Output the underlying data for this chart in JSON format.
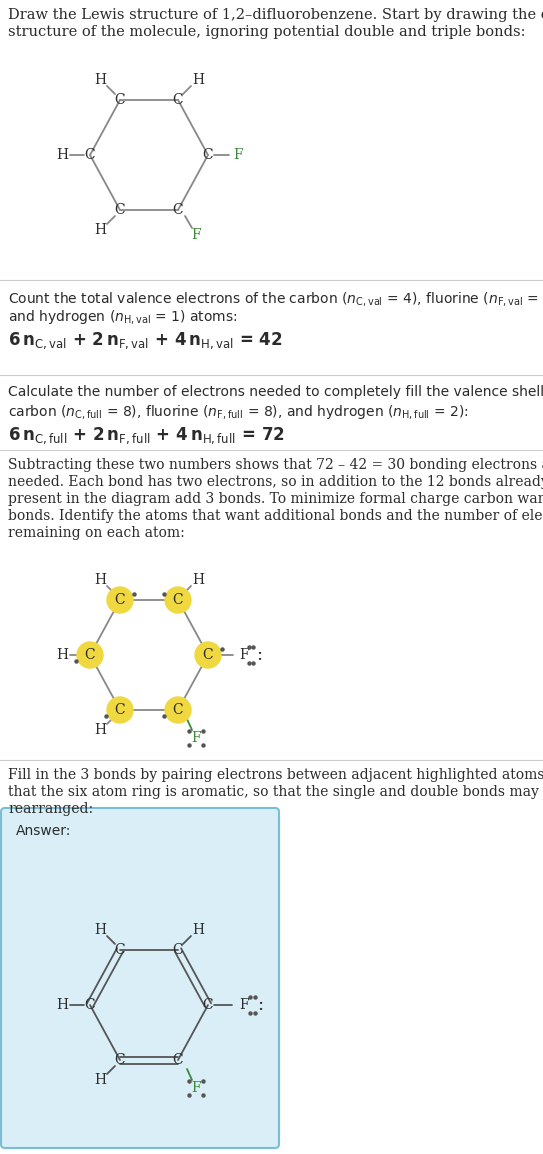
{
  "bg_color": "#ffffff",
  "text_color": "#2b2b2b",
  "gray_color": "#888888",
  "green_color": "#3a8a3a",
  "highlight_color": "#f0d840",
  "answer_box_color": "#daeef8",
  "answer_box_border": "#7bbdd4",
  "bond_color": "#888888",
  "sep_color": "#cccccc"
}
